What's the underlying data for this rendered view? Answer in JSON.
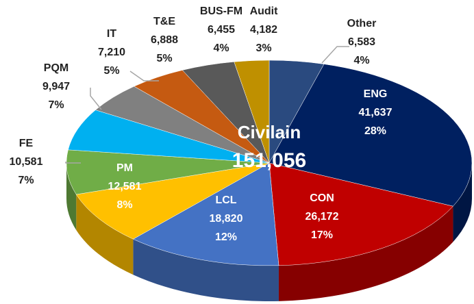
{
  "chart_data": {
    "type": "pie3d",
    "center_title": "Civilain",
    "total": {
      "value": 151056,
      "label": "151,056"
    },
    "categories": [
      "Other",
      "ENG",
      "CON",
      "LCL",
      "PM",
      "FE",
      "PQM",
      "IT",
      "T&E",
      "BUS-FM",
      "Audit"
    ],
    "values": [
      6583,
      41637,
      26172,
      18820,
      12581,
      10581,
      9947,
      7210,
      6888,
      6455,
      4182
    ],
    "value_labels": [
      "6,583",
      "41,637",
      "26,172",
      "18,820",
      "12,581",
      "10,581",
      "9,947",
      "7,210",
      "6,888",
      "6,455",
      "4,182"
    ],
    "percents": [
      4,
      28,
      17,
      12,
      8,
      7,
      7,
      5,
      5,
      4,
      3
    ],
    "percent_labels": [
      "4%",
      "28%",
      "17%",
      "12%",
      "8%",
      "7%",
      "7%",
      "5%",
      "5%",
      "4%",
      "3%"
    ],
    "colors": [
      "#2a4a7f",
      "#002060",
      "#c00000",
      "#4472c4",
      "#ffc000",
      "#70ad47",
      "#00b0f0",
      "#808080",
      "#c55a11",
      "#595959",
      "#bf9000"
    ]
  }
}
